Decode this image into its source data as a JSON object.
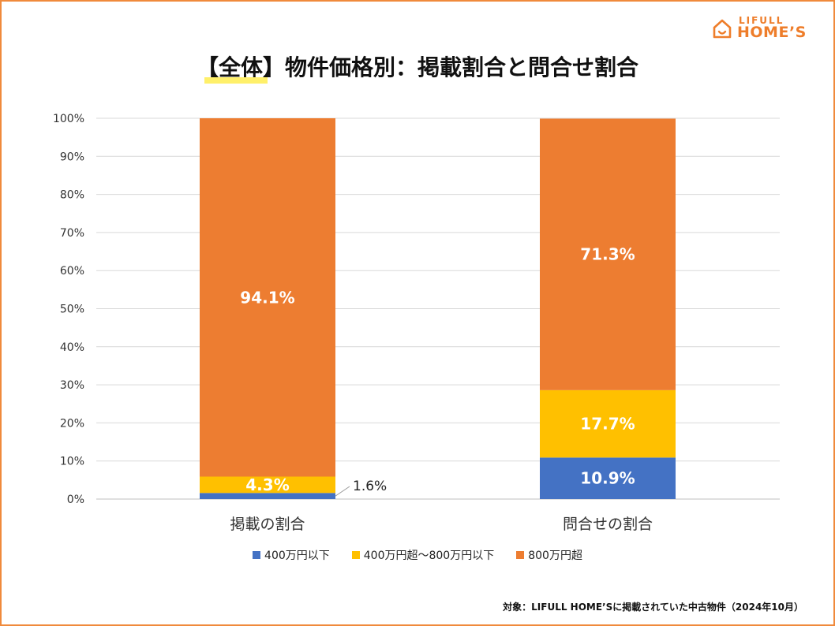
{
  "logo": {
    "small": "LIFULL",
    "big": "HOME’S"
  },
  "chart_data": {
    "type": "bar",
    "stacked": true,
    "title": "【全体】物件価格別：掲載割合と問合せ割合",
    "categories": [
      "掲載の割合",
      "問合せの割合"
    ],
    "series": [
      {
        "name": "400万円以下",
        "color": "#4472c4",
        "values": [
          1.6,
          10.9
        ]
      },
      {
        "name": "400万円超～800万円以下",
        "color": "#ffc000",
        "values": [
          4.3,
          17.7
        ]
      },
      {
        "name": "800万円超",
        "color": "#ed7d31",
        "values": [
          94.1,
          71.3
        ]
      }
    ],
    "data_labels": [
      [
        "1.6%",
        "10.9%"
      ],
      [
        "4.3%",
        "17.7%"
      ],
      [
        "94.1%",
        "71.3%"
      ]
    ],
    "y_ticks": [
      "0%",
      "10%",
      "20%",
      "30%",
      "40%",
      "50%",
      "60%",
      "70%",
      "80%",
      "90%",
      "100%"
    ],
    "ylim": [
      0,
      100
    ],
    "grid": true,
    "legend_position": "bottom"
  },
  "footnote": "対象：LIFULL HOME’Sに掲載されていた中古物件（2024年10月）"
}
